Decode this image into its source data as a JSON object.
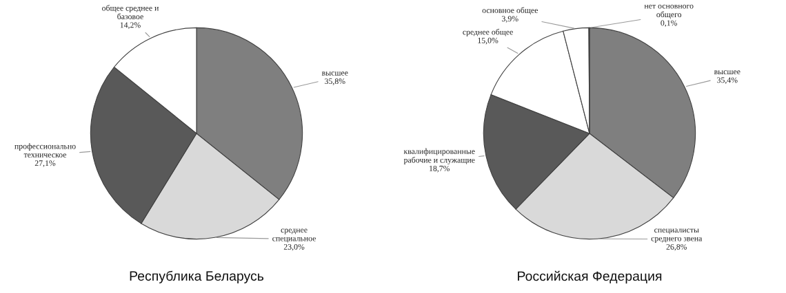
{
  "chart_data": [
    {
      "type": "pie",
      "title": "Республика Беларусь",
      "categories": [
        "высшее",
        "среднее\nспециальное",
        "профессионально\nтехническое",
        "общее среднее и\nбазовое"
      ],
      "values": [
        35.8,
        23.0,
        27.1,
        14.2
      ],
      "value_labels": [
        "35,8%",
        "23,0%",
        "27,1%",
        "14,2%"
      ],
      "colors": [
        "#7f7f7f",
        "#d9d9d9",
        "#595959",
        "#ffffff"
      ]
    },
    {
      "type": "pie",
      "title": "Российская Федерация",
      "categories": [
        "высшее",
        "специалисты\nсреднего звена",
        "квалифицированные\nрабочие и служащие",
        "среднее общее",
        "основное общее",
        "нет основного\nобщего"
      ],
      "values": [
        35.4,
        26.8,
        18.7,
        15.0,
        3.9,
        0.1
      ],
      "value_labels": [
        "35,4%",
        "26,8%",
        "18,7%",
        "15,0%",
        "3,9%",
        "0,1%"
      ],
      "colors": [
        "#7f7f7f",
        "#d9d9d9",
        "#595959",
        "#ffffff",
        "#ffffff",
        "#ffffff"
      ]
    }
  ]
}
